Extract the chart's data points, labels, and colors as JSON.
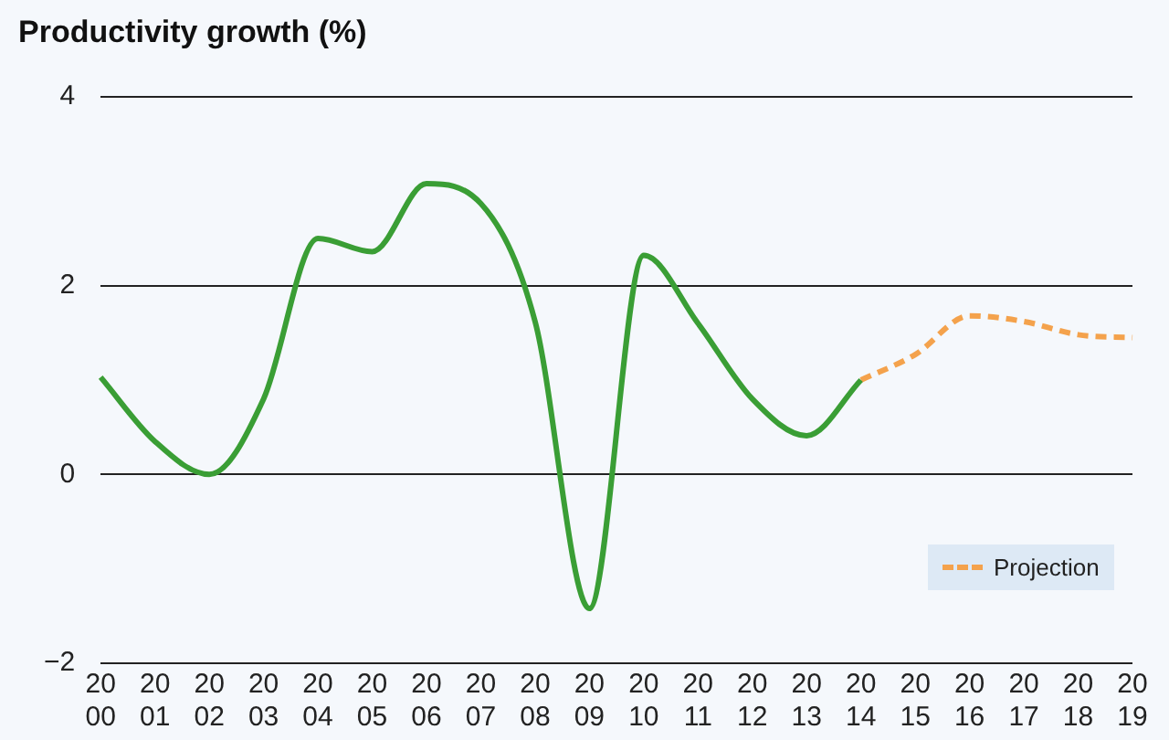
{
  "chart_data": {
    "type": "line",
    "title": "Productivity growth (%)",
    "categories": [
      "2000",
      "2001",
      "2002",
      "2003",
      "2004",
      "2005",
      "2006",
      "2007",
      "2008",
      "2009",
      "2010",
      "2011",
      "2012",
      "2013",
      "2014",
      "2015",
      "2016",
      "2017",
      "2018",
      "2019"
    ],
    "series": [
      {
        "color": "#3a9e35",
        "line_style": "solid",
        "values": [
          1.03,
          0.35,
          0.0,
          0.8,
          2.5,
          2.36,
          3.08,
          2.87,
          1.62,
          -1.42,
          2.32,
          1.6,
          0.8,
          0.41,
          1.0,
          null,
          null,
          null,
          null,
          null
        ]
      },
      {
        "name": "Projection",
        "color": "#f4a24c",
        "line_style": "dashed",
        "values": [
          null,
          null,
          null,
          null,
          null,
          null,
          null,
          null,
          null,
          null,
          null,
          null,
          null,
          null,
          1.0,
          1.27,
          1.68,
          1.62,
          1.48,
          1.45
        ]
      }
    ],
    "ylim": [
      -2,
      4
    ],
    "yticks": [
      {
        "value": -2,
        "label": "−2"
      },
      0,
      2,
      4
    ],
    "grid": "y",
    "legend": "bottom right",
    "marker": "none"
  }
}
